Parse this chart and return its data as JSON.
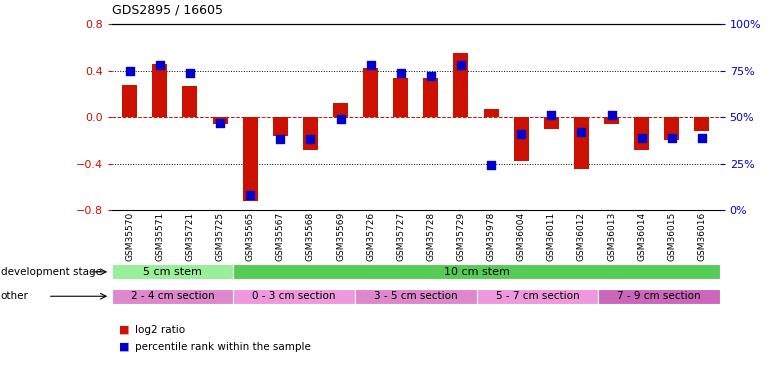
{
  "title": "GDS2895 / 16605",
  "categories": [
    "GSM35570",
    "GSM35571",
    "GSM35721",
    "GSM35725",
    "GSM35565",
    "GSM35567",
    "GSM35568",
    "GSM35569",
    "GSM35726",
    "GSM35727",
    "GSM35728",
    "GSM35729",
    "GSM35978",
    "GSM36004",
    "GSM36011",
    "GSM36012",
    "GSM36013",
    "GSM36014",
    "GSM36015",
    "GSM36016"
  ],
  "log2_ratio": [
    0.28,
    0.46,
    0.27,
    -0.06,
    -0.72,
    -0.16,
    -0.28,
    0.12,
    0.42,
    0.34,
    0.34,
    0.55,
    0.07,
    -0.38,
    -0.1,
    -0.45,
    -0.06,
    -0.28,
    -0.2,
    -0.12
  ],
  "percentile": [
    75,
    78,
    74,
    47,
    8,
    38,
    38,
    49,
    78,
    74,
    72,
    78,
    24,
    41,
    51,
    42,
    51,
    39,
    39,
    39
  ],
  "ylim": [
    -0.8,
    0.8
  ],
  "yticks": [
    -0.8,
    -0.4,
    0.0,
    0.4,
    0.8
  ],
  "hlines": [
    -0.4,
    0.0,
    0.4
  ],
  "bar_color": "#cc1100",
  "dot_color": "#0000cc",
  "bg_color": "#ffffff",
  "development_stage_label": "development stage",
  "other_label": "other",
  "dev_groups": [
    {
      "label": "5 cm stem",
      "start": 0,
      "end": 4,
      "color": "#99ee99"
    },
    {
      "label": "10 cm stem",
      "start": 4,
      "end": 20,
      "color": "#55cc55"
    }
  ],
  "other_groups": [
    {
      "label": "2 - 4 cm section",
      "start": 0,
      "end": 4,
      "color": "#dd88cc"
    },
    {
      "label": "0 - 3 cm section",
      "start": 4,
      "end": 8,
      "color": "#ee99dd"
    },
    {
      "label": "3 - 5 cm section",
      "start": 8,
      "end": 12,
      "color": "#dd88cc"
    },
    {
      "label": "5 - 7 cm section",
      "start": 12,
      "end": 16,
      "color": "#ee99dd"
    },
    {
      "label": "7 - 9 cm section",
      "start": 16,
      "end": 20,
      "color": "#cc66bb"
    }
  ],
  "legend_red": "log2 ratio",
  "legend_blue": "percentile rank within the sample"
}
